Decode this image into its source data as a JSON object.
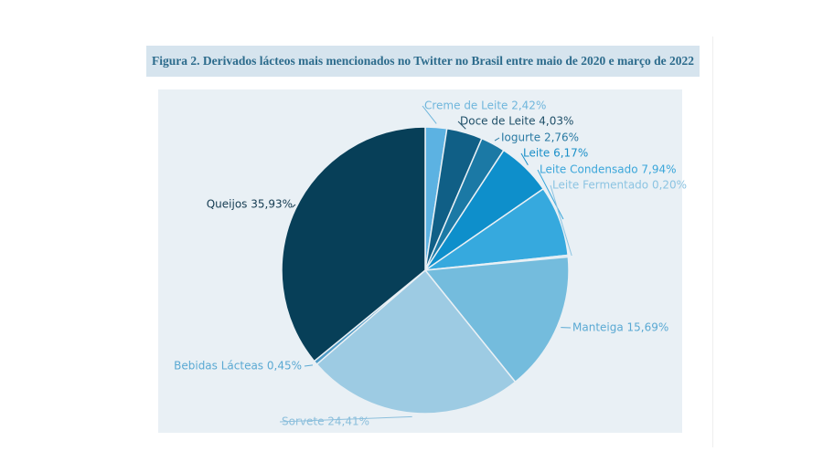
{
  "title": "Figura 2. Derivados lácteos mais mencionados no Twitter no Brasil entre maio de 2020 e março de 2022",
  "chart_data": {
    "type": "pie",
    "title": "Figura 2. Derivados lácteos mais mencionados no Twitter no Brasil entre maio de 2020 e março de 2022",
    "start": "top, clockwise",
    "slices": [
      {
        "name": "Creme de Leite",
        "value": 2.42,
        "label": "Creme de Leite 2,42%",
        "color": "#5cb2e2",
        "label_color": "#6fb6dc"
      },
      {
        "name": "Doce de Leite",
        "value": 4.03,
        "label": "Doce de Leite 4,03%",
        "color": "#105f86",
        "label_color": "#1f4f68"
      },
      {
        "name": "Iogurte",
        "value": 2.76,
        "label": "Iogurte 2,76%",
        "color": "#1b79a5",
        "label_color": "#2a7aa3"
      },
      {
        "name": "Leite",
        "value": 6.17,
        "label": "Leite 6,17%",
        "color": "#0e8fcb",
        "label_color": "#1a8fc8"
      },
      {
        "name": "Leite Condensado",
        "value": 7.94,
        "label": "Leite Condensado 7,94%",
        "color": "#36a9de",
        "label_color": "#3aa6da"
      },
      {
        "name": "Leite Fermentado",
        "value": 0.2,
        "label": "Leite Fermentado 0,20%",
        "color": "#a8d3ea",
        "label_color": "#8cc4e2"
      },
      {
        "name": "Manteiga",
        "value": 15.69,
        "label": "Manteiga 15,69%",
        "color": "#74bcdd",
        "label_color": "#5aa9d3"
      },
      {
        "name": "Sorvete",
        "value": 24.41,
        "label": "Sorvete 24,41%",
        "color": "#9dcbe3",
        "label_color": "#8cbfdc"
      },
      {
        "name": "Bebidas Lácteas",
        "value": 0.45,
        "label": "Bebidas Lácteas 0,45%",
        "color": "#4f9bc6",
        "label_color": "#5aa9d3"
      },
      {
        "name": "Queijos",
        "value": 35.93,
        "label": "Queijos 35,93%",
        "color": "#073f58",
        "label_color": "#153c52"
      }
    ]
  }
}
